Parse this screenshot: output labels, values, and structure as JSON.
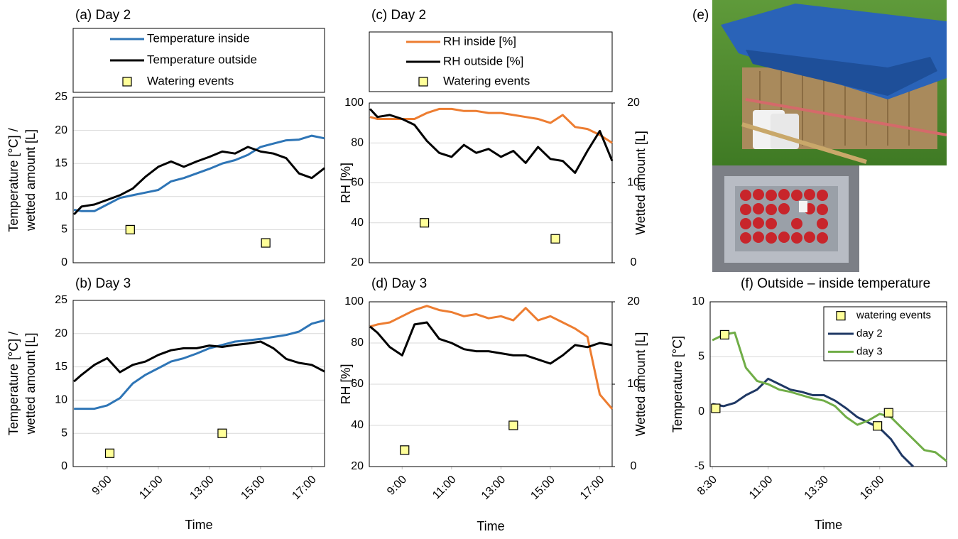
{
  "image_panel": {
    "label": "(e)"
  },
  "chart_data": [
    {
      "type": "line",
      "title": "(a) Day 2",
      "ylabel": [
        "Temperature [°C] /",
        "wetted amount [L]"
      ],
      "x": [
        7.7,
        8,
        8.5,
        9,
        9.5,
        10,
        10.5,
        11,
        11.5,
        12,
        12.5,
        13,
        13.5,
        14,
        14.5,
        15,
        15.5,
        16,
        16.5,
        17,
        17.5
      ],
      "xlim": [
        7.67,
        17.5
      ],
      "ylim": [
        0,
        25
      ],
      "yticks": [
        0,
        5,
        10,
        15,
        20,
        25
      ],
      "grid": true,
      "legend": "above",
      "series": [
        {
          "name": "Temperature inside",
          "color": "#2e75b6",
          "values": [
            8.0,
            7.8,
            7.8,
            8.8,
            9.8,
            10.2,
            10.6,
            11.0,
            12.3,
            12.8,
            13.5,
            14.2,
            15.0,
            15.5,
            16.3,
            17.5,
            18.0,
            18.5,
            18.6,
            19.2,
            18.8
          ]
        },
        {
          "name": "Temperature outside",
          "color": "#000000",
          "values": [
            7.3,
            8.5,
            8.8,
            9.5,
            10.2,
            11.2,
            13.0,
            14.5,
            15.3,
            14.5,
            15.3,
            16.0,
            16.8,
            16.5,
            17.5,
            16.8,
            16.5,
            15.8,
            13.5,
            12.8,
            14.3
          ]
        },
        {
          "name": "Watering events",
          "type": "scatter",
          "color": "#ffff99",
          "x": [
            9.9,
            15.2
          ],
          "values": [
            5,
            3
          ]
        }
      ]
    },
    {
      "type": "line",
      "title": "(b) Day 3",
      "ylabel": [
        "Temperature [°C] /",
        "wetted amount [L]"
      ],
      "xlabel": "Time",
      "x": [
        7.7,
        8,
        8.5,
        9,
        9.5,
        10,
        10.5,
        11,
        11.5,
        12,
        12.5,
        13,
        13.5,
        14,
        14.5,
        15,
        15.5,
        16,
        16.5,
        17,
        17.5
      ],
      "xlim": [
        7.67,
        17.5
      ],
      "xticks": [
        {
          "value": 9,
          "label": "9:00"
        },
        {
          "value": 11,
          "label": "11:00"
        },
        {
          "value": 13,
          "label": "13:00"
        },
        {
          "value": 15,
          "label": "15:00"
        },
        {
          "value": 17,
          "label": "17:00"
        }
      ],
      "ylim": [
        0,
        25
      ],
      "yticks": [
        0,
        5,
        10,
        15,
        20,
        25
      ],
      "grid": true,
      "series": [
        {
          "name": "Temperature inside",
          "color": "#2e75b6",
          "values": [
            8.7,
            8.7,
            8.7,
            9.2,
            10.3,
            12.5,
            13.8,
            14.8,
            15.8,
            16.3,
            17.0,
            17.8,
            18.3,
            18.8,
            19.0,
            19.2,
            19.5,
            19.8,
            20.3,
            21.5,
            22.0
          ]
        },
        {
          "name": "Temperature outside",
          "color": "#000000",
          "values": [
            12.8,
            13.8,
            15.3,
            16.3,
            14.2,
            15.3,
            15.8,
            16.8,
            17.5,
            17.8,
            17.8,
            18.2,
            18.0,
            18.3,
            18.5,
            18.8,
            17.8,
            16.2,
            15.6,
            15.3,
            14.3
          ]
        },
        {
          "name": "Watering events",
          "type": "scatter",
          "color": "#ffff99",
          "x": [
            9.1,
            13.5
          ],
          "values": [
            2,
            5
          ]
        }
      ]
    },
    {
      "type": "line",
      "title": "(c) Day 2",
      "ylabel": [
        "RH [%]"
      ],
      "y2label": "Wetted amount [L]",
      "x": [
        7.7,
        8,
        8.5,
        9,
        9.5,
        10,
        10.5,
        11,
        11.5,
        12,
        12.5,
        13,
        13.5,
        14,
        14.5,
        15,
        15.5,
        16,
        16.5,
        17,
        17.5
      ],
      "xlim": [
        7.67,
        17.5
      ],
      "ylim": [
        20,
        100
      ],
      "yticks": [
        20,
        40,
        60,
        80,
        100
      ],
      "y2lim": [
        0,
        20
      ],
      "y2ticks": [
        0,
        10,
        20
      ],
      "grid": true,
      "legend": "above",
      "series": [
        {
          "name": "RH inside [%]",
          "color": "#ed7d31",
          "values": [
            93,
            92,
            92,
            92,
            92,
            95,
            97,
            97,
            96,
            96,
            95,
            95,
            94,
            93,
            92,
            90,
            94,
            88,
            87,
            84,
            80
          ]
        },
        {
          "name": "RH outside [%]",
          "color": "#000000",
          "values": [
            97,
            93,
            94,
            92,
            89,
            81,
            75,
            73,
            79,
            75,
            77,
            73,
            76,
            70,
            78,
            72,
            71,
            65,
            76,
            86,
            71
          ]
        },
        {
          "name": "Watering events",
          "type": "scatter",
          "axis": "y2",
          "color": "#ffff99",
          "x": [
            9.9,
            15.2
          ],
          "values": [
            5,
            3
          ]
        }
      ]
    },
    {
      "type": "line",
      "title": "(d) Day 3",
      "ylabel": [
        "RH [%]"
      ],
      "y2label": "Wetted amount [L]",
      "xlabel": "Time",
      "x": [
        7.7,
        8,
        8.5,
        9,
        9.5,
        10,
        10.5,
        11,
        11.5,
        12,
        12.5,
        13,
        13.5,
        14,
        14.5,
        15,
        15.5,
        16,
        16.5,
        17,
        17.5
      ],
      "xlim": [
        7.67,
        17.5
      ],
      "xticks": [
        {
          "value": 9,
          "label": "9:00"
        },
        {
          "value": 11,
          "label": "11:00"
        },
        {
          "value": 13,
          "label": "13:00"
        },
        {
          "value": 15,
          "label": "15:00"
        },
        {
          "value": 17,
          "label": "17:00"
        }
      ],
      "ylim": [
        20,
        100
      ],
      "yticks": [
        20,
        40,
        60,
        80,
        100
      ],
      "y2lim": [
        0,
        20
      ],
      "y2ticks": [
        0,
        10,
        20
      ],
      "grid": true,
      "series": [
        {
          "name": "RH inside [%]",
          "color": "#ed7d31",
          "values": [
            88,
            89,
            90,
            93,
            96,
            98,
            96,
            95,
            93,
            94,
            92,
            93,
            91,
            97,
            91,
            93,
            90,
            87,
            83,
            55,
            48
          ]
        },
        {
          "name": "RH outside [%]",
          "color": "#000000",
          "values": [
            88,
            85,
            78,
            74,
            89,
            90,
            82,
            80,
            77,
            76,
            76,
            75,
            74,
            74,
            72,
            70,
            74,
            79,
            78,
            80,
            79
          ]
        },
        {
          "name": "Watering events",
          "type": "scatter",
          "axis": "y2",
          "color": "#ffff99",
          "x": [
            9.1,
            13.5
          ],
          "values": [
            2,
            5
          ]
        }
      ]
    },
    {
      "type": "line",
      "title": "(f) Outside – inside temperature",
      "ylabel": [
        "Temperature [°C]"
      ],
      "xlabel": "Time",
      "x": [
        8.5,
        9,
        9.5,
        10,
        10.5,
        11,
        11.5,
        12,
        12.5,
        13,
        13.5,
        14,
        14.5,
        15,
        15.5,
        16,
        16.5,
        17,
        17.5,
        18,
        18.5,
        19
      ],
      "xlim": [
        8.4,
        19
      ],
      "xticks": [
        {
          "value": 8.5,
          "label": "8:30"
        },
        {
          "value": 11,
          "label": "11:00"
        },
        {
          "value": 13.5,
          "label": "13:30"
        },
        {
          "value": 16,
          "label": "16:00"
        }
      ],
      "ylim": [
        -5,
        10
      ],
      "yticks": [
        -5,
        0,
        5,
        10
      ],
      "grid": true,
      "legend": "upper right",
      "series": [
        {
          "name": "watering events",
          "type": "scatter",
          "color": "#ffff99",
          "x": [
            8.65,
            9.05,
            15.9,
            16.4
          ],
          "values": [
            0.3,
            7.0,
            -1.3,
            -0.1
          ]
        },
        {
          "name": "day 2",
          "color": "#1f3864",
          "values": [
            0.7,
            0.5,
            0.8,
            1.5,
            2.0,
            3.0,
            2.5,
            2.0,
            1.8,
            1.5,
            1.5,
            1.0,
            0.3,
            -0.5,
            -1.0,
            -1.5,
            -2.5,
            -4.0,
            -5.0,
            null,
            null,
            null
          ]
        },
        {
          "name": "day 3",
          "color": "#70ad47",
          "values": [
            6.5,
            7.0,
            7.2,
            4.0,
            2.8,
            2.5,
            2.0,
            1.8,
            1.5,
            1.2,
            1.0,
            0.5,
            -0.5,
            -1.2,
            -0.8,
            -0.2,
            -0.5,
            -1.5,
            -2.5,
            -3.5,
            -3.7,
            -4.5
          ]
        }
      ]
    }
  ]
}
